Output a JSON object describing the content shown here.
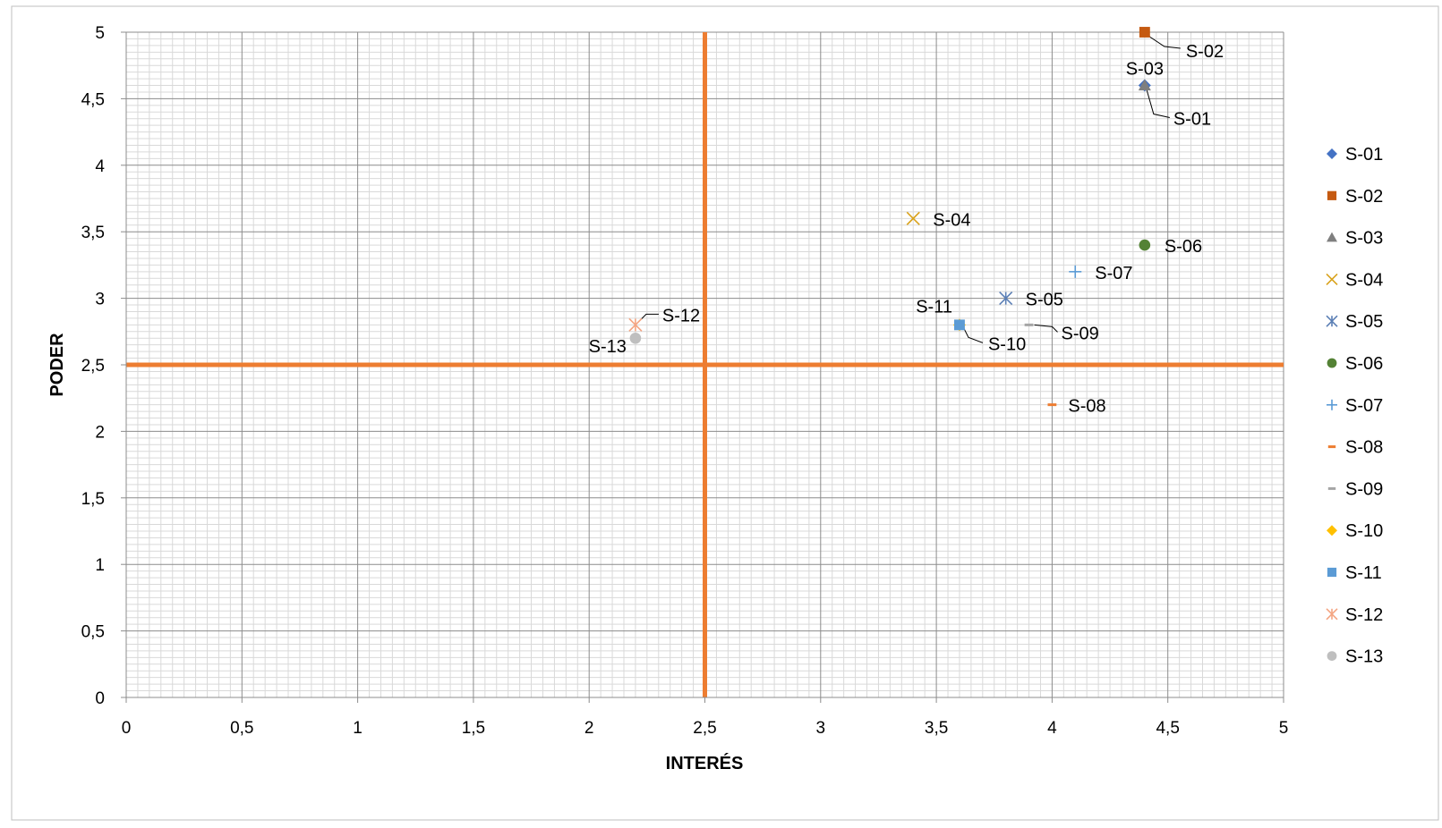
{
  "chart_data": {
    "type": "scatter",
    "title": "",
    "xlabel": "INTERÉS",
    "ylabel": "PODER",
    "xlim": [
      0,
      5
    ],
    "ylim": [
      0,
      5
    ],
    "xticks": [
      "0",
      "0,5",
      "1",
      "1,5",
      "2",
      "2,5",
      "3",
      "3,5",
      "4",
      "4,5",
      "5"
    ],
    "yticks": [
      "0",
      "0,5",
      "1",
      "1,5",
      "2",
      "2,5",
      "3",
      "3,5",
      "4",
      "4,5",
      "5"
    ],
    "grid": true,
    "minor_grid": true,
    "legend_position": "right",
    "reference_lines": {
      "x": 2.5,
      "y": 2.5,
      "color": "#ED7D31"
    },
    "series": [
      {
        "name": "S-01",
        "x": 4.4,
        "y": 4.6,
        "marker": "diamond",
        "color": "#4472C4",
        "label": "S-01"
      },
      {
        "name": "S-02",
        "x": 4.4,
        "y": 5.0,
        "marker": "square",
        "color": "#C55A11",
        "label": "S-02"
      },
      {
        "name": "S-03",
        "x": 4.4,
        "y": 4.6,
        "marker": "triangle",
        "color": "#7F7F7F",
        "label": "S-03"
      },
      {
        "name": "S-04",
        "x": 3.4,
        "y": 3.6,
        "marker": "x",
        "color": "#D9A21B",
        "label": "S-04"
      },
      {
        "name": "S-05",
        "x": 3.8,
        "y": 3.0,
        "marker": "star",
        "color": "#5B7FB5",
        "label": "S-05"
      },
      {
        "name": "S-06",
        "x": 4.4,
        "y": 3.4,
        "marker": "circle",
        "color": "#548235",
        "label": "S-06"
      },
      {
        "name": "S-07",
        "x": 4.1,
        "y": 3.2,
        "marker": "plus",
        "color": "#5B9BD5",
        "label": "S-07"
      },
      {
        "name": "S-08",
        "x": 4.0,
        "y": 2.2,
        "marker": "dash",
        "color": "#ED7D31",
        "label": "S-08"
      },
      {
        "name": "S-09",
        "x": 3.9,
        "y": 2.8,
        "marker": "dash",
        "color": "#A5A5A5",
        "label": "S-09"
      },
      {
        "name": "S-10",
        "x": 3.6,
        "y": 2.8,
        "marker": "diamond",
        "color": "#FFC000",
        "label": "S-10"
      },
      {
        "name": "S-11",
        "x": 3.6,
        "y": 2.8,
        "marker": "square",
        "color": "#5B9BD5",
        "label": "S-11"
      },
      {
        "name": "S-12",
        "x": 2.2,
        "y": 2.8,
        "marker": "star",
        "color": "#F4A582",
        "label": "S-12"
      },
      {
        "name": "S-13",
        "x": 2.2,
        "y": 2.7,
        "marker": "circle",
        "color": "#BFBFBF",
        "label": "S-13"
      }
    ]
  }
}
